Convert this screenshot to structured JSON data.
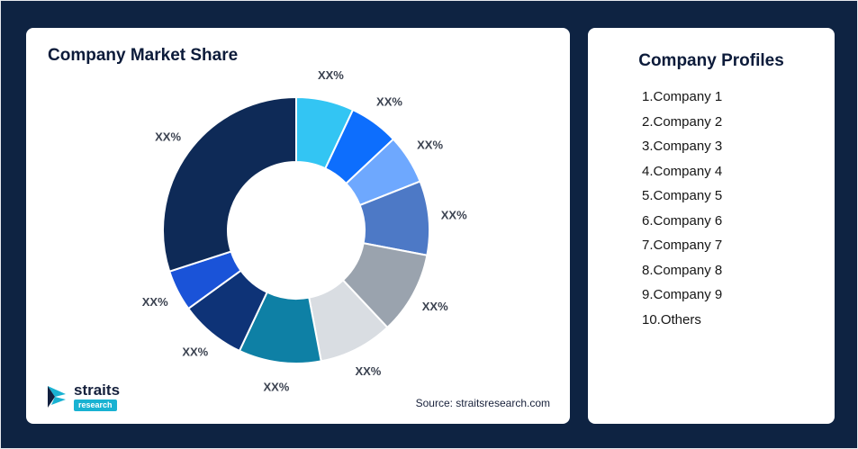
{
  "left_card": {
    "title": "Company Market Share",
    "source": "Source: straitsresearch.com",
    "logo": {
      "name": "straits",
      "sub": "research"
    }
  },
  "right_card": {
    "title": "Company Profiles",
    "items": [
      "1.Company 1",
      "2.Company 2",
      "3.Company 3",
      "4.Company 4",
      "5.Company 5",
      "6.Company 6",
      "7.Company 7",
      "8.Company 8",
      "9.Company 9",
      "10.Others"
    ]
  },
  "chart_data": {
    "type": "pie",
    "variant": "donut",
    "title": "Company Market Share",
    "value_labels_placeholder": "XX%",
    "legend_position": "none",
    "segments": [
      {
        "name": "Company 1",
        "value": 7,
        "label": "XX%",
        "color": "#33c5f3"
      },
      {
        "name": "Company 2",
        "value": 6,
        "label": "XX%",
        "color": "#0d6efd"
      },
      {
        "name": "Company 3",
        "value": 6,
        "label": "XX%",
        "color": "#6ea8fe"
      },
      {
        "name": "Company 4",
        "value": 9,
        "label": "XX%",
        "color": "#4d79c6"
      },
      {
        "name": "Company 5",
        "value": 10,
        "label": "XX%",
        "color": "#9aa3ae"
      },
      {
        "name": "Company 6",
        "value": 9,
        "label": "XX%",
        "color": "#d9dde2"
      },
      {
        "name": "Company 7",
        "value": 10,
        "label": "XX%",
        "color": "#0e80a5"
      },
      {
        "name": "Company 8",
        "value": 8,
        "label": "XX%",
        "color": "#0e3377"
      },
      {
        "name": "Company 9",
        "value": 5,
        "label": "XX%",
        "color": "#1a53d8"
      },
      {
        "name": "Others",
        "value": 30,
        "label": "XX%",
        "color": "#0e2a57"
      }
    ]
  },
  "colors": {
    "background": "#0e2342",
    "card": "#ffffff",
    "title_text": "#0c1b3a",
    "label_text": "#3b4250",
    "logo_accent": "#19b2d2"
  }
}
